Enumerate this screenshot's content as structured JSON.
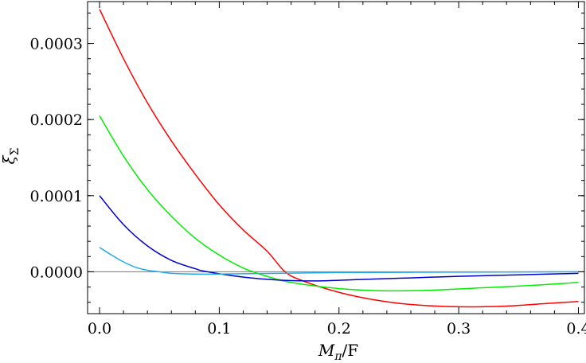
{
  "chart_data": {
    "type": "line",
    "xlabel": {
      "main": "M",
      "sub": "π",
      "suffix": "/F"
    },
    "ylabel": {
      "main": "ξ",
      "sub": "Σ"
    },
    "xlim": [
      -0.01,
      0.405
    ],
    "ylim": [
      -5.5e-05,
      0.000355
    ],
    "x_ticks": [
      0.0,
      0.1,
      0.2,
      0.3,
      0.4
    ],
    "x_tick_labels": [
      "0.0",
      "0.1",
      "0.2",
      "0.3",
      "0.4"
    ],
    "y_ticks": [
      0.0,
      0.0001,
      0.0002,
      0.0003
    ],
    "y_tick_labels": [
      "0.0000",
      "0.0001",
      "0.0002",
      "0.0003"
    ],
    "zero_line": true,
    "grid": false,
    "series": [
      {
        "color": "#ff0000",
        "x": [
          0.0,
          0.02,
          0.04,
          0.06,
          0.08,
          0.1,
          0.12,
          0.14,
          0.155,
          0.17,
          0.2,
          0.23,
          0.26,
          0.3,
          0.34,
          0.37,
          0.4
        ],
        "y": [
          0.000345,
          0.00028,
          0.000222,
          0.000172,
          0.000128,
          8.8e-05,
          5.5e-05,
          2.7e-05,
          0.0,
          -1.2e-05,
          -2.7e-05,
          -3.7e-05,
          -4.3e-05,
          -4.6e-05,
          -4.5e-05,
          -4.2e-05,
          -3.9e-05
        ]
      },
      {
        "color": "#00ee00",
        "x": [
          0.0,
          0.02,
          0.04,
          0.06,
          0.08,
          0.1,
          0.12,
          0.14,
          0.16,
          0.2,
          0.24,
          0.28,
          0.32,
          0.36,
          0.4
        ],
        "y": [
          0.000205,
          0.000152,
          0.000108,
          7.3e-05,
          4.4e-05,
          2.2e-05,
          5e-06,
          -6e-06,
          -1.4e-05,
          -2.2e-05,
          -2.5e-05,
          -2.4e-05,
          -2.1e-05,
          -1.8e-05,
          -1.4e-05
        ]
      },
      {
        "color": "#0000cc",
        "x": [
          0.0,
          0.02,
          0.04,
          0.06,
          0.08,
          0.09,
          0.12,
          0.15,
          0.18,
          0.22,
          0.26,
          0.3,
          0.35,
          0.4
        ],
        "y": [
          0.0001,
          6.2e-05,
          3.4e-05,
          1.5e-05,
          4e-06,
          0.0,
          -7e-06,
          -1.1e-05,
          -1.2e-05,
          -1e-05,
          -8e-06,
          -6e-06,
          -4e-06,
          -2e-06
        ]
      },
      {
        "color": "#22aaee",
        "x": [
          0.0,
          0.01,
          0.02,
          0.03,
          0.04,
          0.05,
          0.06,
          0.08,
          0.1,
          0.15,
          0.2,
          0.3,
          0.4
        ],
        "y": [
          3.2e-05,
          2.2e-05,
          1.3e-05,
          6e-06,
          2e-06,
          0.0,
          -2e-06,
          -3e-06,
          -3e-06,
          -2e-06,
          -1e-06,
          -5e-07,
          0.0
        ]
      }
    ]
  }
}
